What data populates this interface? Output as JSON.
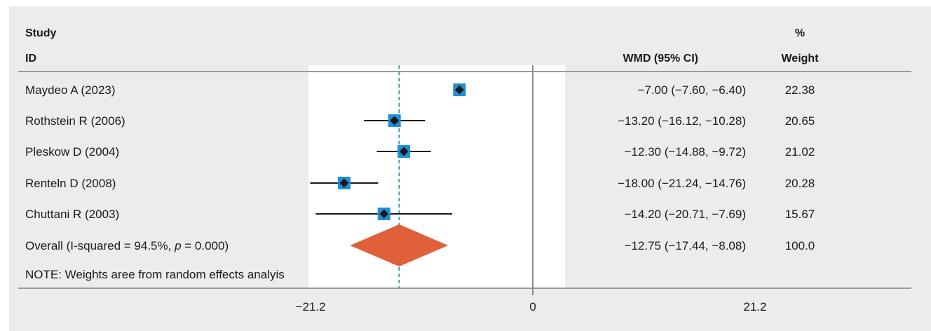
{
  "headers": {
    "study_line1": "Study",
    "study_line2": "ID",
    "effect": "WMD (95% CI)",
    "weight_line1": "%",
    "weight_line2": "Weight"
  },
  "chart_data": {
    "type": "forest",
    "measure": "WMD",
    "x_ticks": [
      -21.2,
      0,
      21.2
    ],
    "x_tick_labels": [
      "−21.2",
      "0",
      "21.2"
    ],
    "xlim": [
      -21.2,
      21.2
    ],
    "null_line": 0,
    "overall_line": -12.75,
    "colors": {
      "box": "#1f8fd6",
      "point": "#1a1a1a",
      "diamond": "#e0603a",
      "overall_line": "#2aa6a6",
      "panel_bg": "#ececec",
      "plot_bg": "#ffffff"
    },
    "studies": [
      {
        "label": "Maydeo A (2023)",
        "est": -7.0,
        "lo": -7.6,
        "hi": -6.4,
        "ci_text": "−7.00 (−7.60, −6.40)",
        "weight": 22.38,
        "weight_text": "22.38"
      },
      {
        "label": "Rothstein R (2006)",
        "est": -13.2,
        "lo": -16.12,
        "hi": -10.28,
        "ci_text": "−13.20 (−16.12, −10.28)",
        "weight": 20.65,
        "weight_text": "20.65"
      },
      {
        "label": "Pleskow D (2004)",
        "est": -12.3,
        "lo": -14.88,
        "hi": -9.72,
        "ci_text": "−12.30 (−14.88, −9.72)",
        "weight": 21.02,
        "weight_text": "21.02"
      },
      {
        "label": "Renteln D (2008)",
        "est": -18.0,
        "lo": -21.24,
        "hi": -14.76,
        "ci_text": "−18.00 (−21.24, −14.76)",
        "weight": 20.28,
        "weight_text": "20.28"
      },
      {
        "label": "Chuttani R (2003)",
        "est": -14.2,
        "lo": -20.71,
        "hi": -7.69,
        "ci_text": "−14.20 (−20.71, −7.69)",
        "weight": 15.67,
        "weight_text": "15.67"
      }
    ],
    "overall": {
      "label_prefix": "Overall (I-squared = 94.5%, ",
      "label_p": "p",
      "label_suffix": " = 0.000)",
      "est": -12.75,
      "lo": -17.44,
      "hi": -8.08,
      "ci_text": "−12.75 (−17.44, −8.08)",
      "weight_text": "100.0"
    },
    "note": "NOTE: Weights aree from random effects analyis"
  }
}
